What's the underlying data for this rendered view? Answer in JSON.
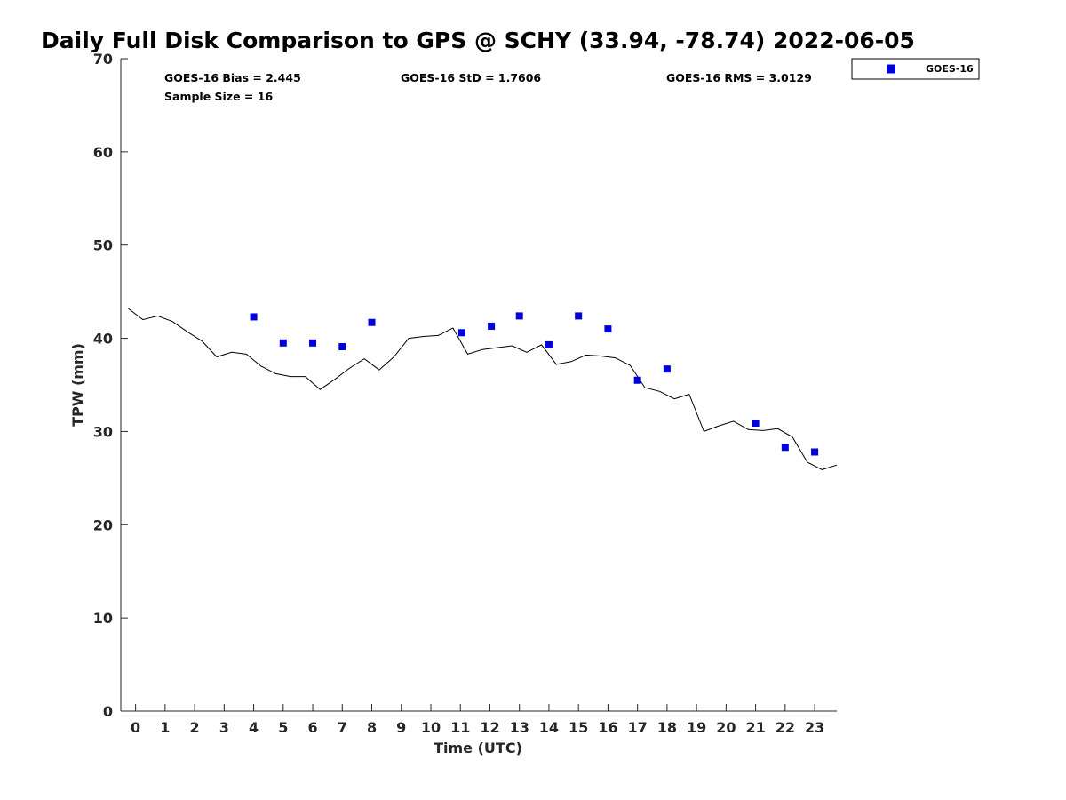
{
  "chart_data": {
    "type": "scatter",
    "title": "Daily Full Disk Comparison to GPS @ SCHY (33.94, -78.74) 2022-06-05",
    "xlabel": "Time (UTC)",
    "ylabel": "TPW (mm)",
    "xlim": [
      -0.5,
      23.75
    ],
    "ylim": [
      0,
      70
    ],
    "xticks": [
      0,
      1,
      2,
      3,
      4,
      5,
      6,
      7,
      8,
      9,
      10,
      11,
      12,
      13,
      14,
      15,
      16,
      17,
      18,
      19,
      20,
      21,
      22,
      23
    ],
    "yticks": [
      0,
      10,
      20,
      30,
      40,
      50,
      60,
      70
    ],
    "grid": false,
    "legend_position": "top-right",
    "stats": {
      "bias": "GOES-16 Bias = 2.445",
      "std": "GOES-16 StD = 1.7606",
      "rms": "GOES-16 RMS = 3.0129",
      "sample": "Sample Size = 16"
    },
    "series": [
      {
        "name": "GOES-16",
        "kind": "scatter",
        "marker": "square",
        "color": "#0000dd",
        "x": [
          4.0,
          5.0,
          6.0,
          7.0,
          8.0,
          11.05,
          12.05,
          13.0,
          14.0,
          15.0,
          16.0,
          17.0,
          18.0,
          21.0,
          22.0,
          23.0
        ],
        "y": [
          42.3,
          39.5,
          39.5,
          39.1,
          41.7,
          40.6,
          41.3,
          42.4,
          39.3,
          42.4,
          41.0,
          35.5,
          36.7,
          30.9,
          28.3,
          27.8
        ]
      },
      {
        "kind": "line",
        "color": "#000000",
        "x": [
          -0.25,
          0.25,
          0.75,
          1.25,
          1.75,
          2.25,
          2.75,
          3.25,
          3.75,
          4.25,
          4.75,
          5.25,
          5.75,
          6.25,
          6.75,
          7.25,
          7.75,
          8.25,
          8.75,
          9.25,
          9.75,
          10.25,
          10.75,
          11.25,
          11.75,
          12.25,
          12.75,
          13.25,
          13.75,
          14.25,
          14.75,
          15.25,
          15.75,
          16.25,
          16.75,
          17.25,
          17.75,
          18.25,
          18.75,
          19.25,
          19.75,
          20.25,
          20.75,
          21.25,
          21.75,
          22.25,
          22.75,
          23.25,
          23.75
        ],
        "y": [
          43.2,
          42.0,
          42.4,
          41.8,
          40.7,
          39.7,
          38.0,
          38.5,
          38.3,
          37.0,
          36.2,
          35.9,
          35.9,
          34.5,
          35.6,
          36.8,
          37.8,
          36.6,
          38.0,
          40.0,
          40.2,
          40.3,
          41.1,
          38.3,
          38.8,
          39.0,
          39.2,
          38.5,
          39.3,
          37.2,
          37.5,
          38.2,
          38.1,
          37.9,
          37.1,
          34.7,
          34.3,
          33.5,
          34.0,
          30.0,
          30.6,
          31.1,
          30.2,
          30.1,
          30.3,
          29.4,
          26.7,
          25.9,
          26.4
        ]
      }
    ]
  }
}
